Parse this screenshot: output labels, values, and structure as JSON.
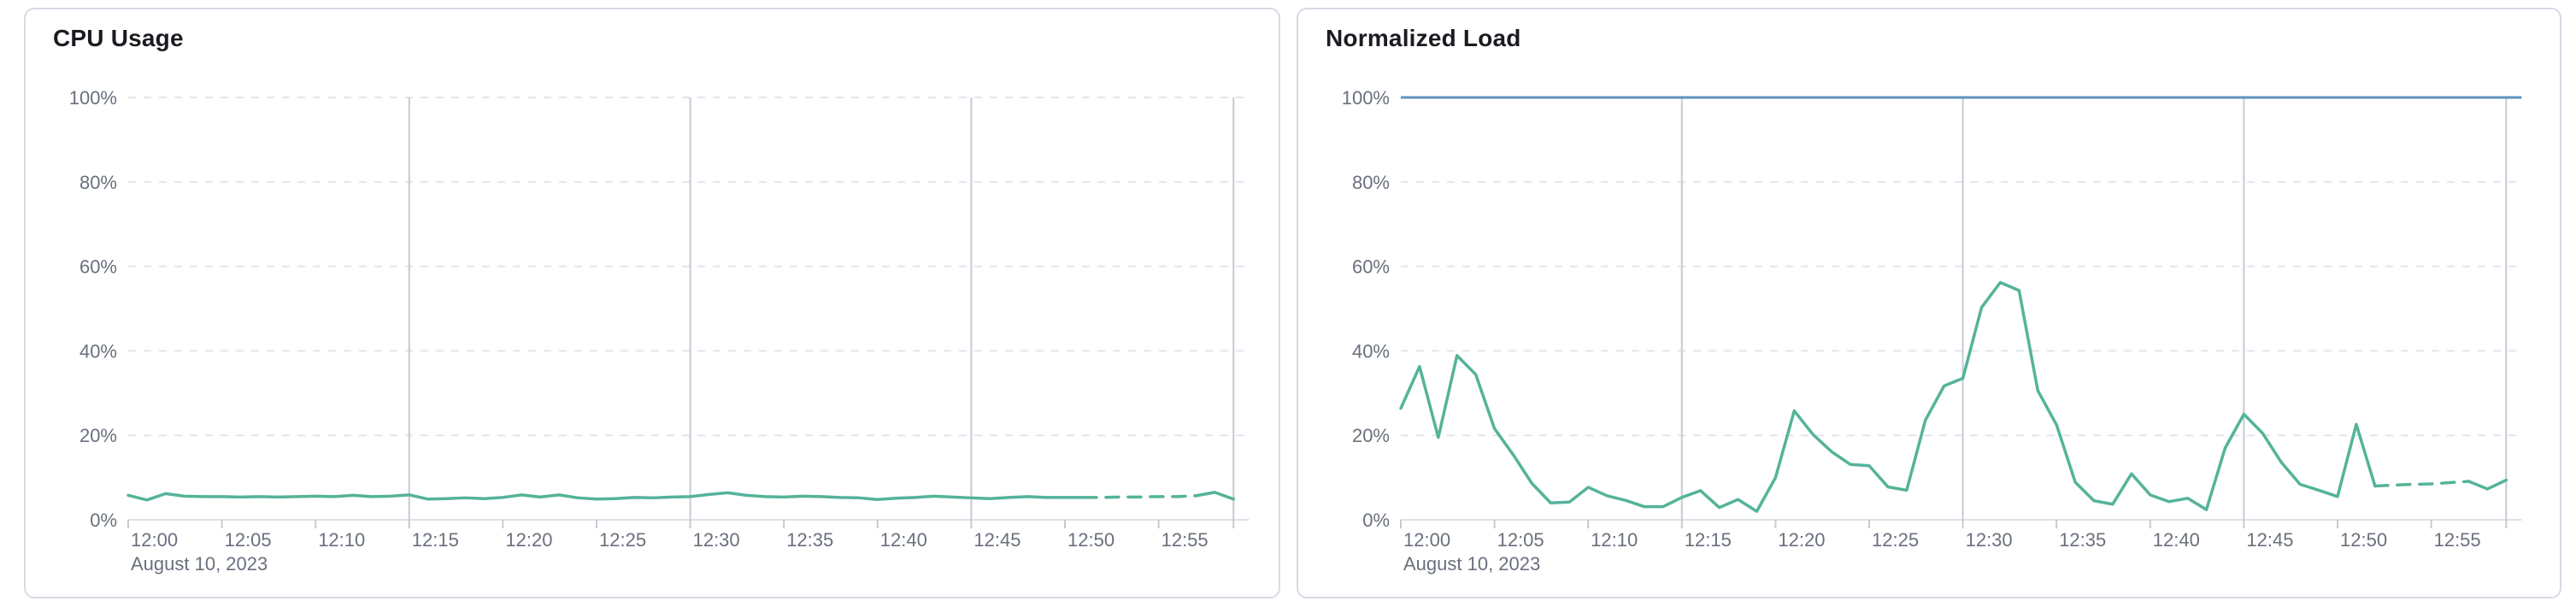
{
  "accent_colors": {
    "series_green": "#54b399",
    "reference_blue": "#6092c0",
    "axis_label_gray": "#69707d",
    "title_color": "#1a1c21",
    "major_gridline_gray": "#c6cad3",
    "minor_gridline_gray": "#e2e5ed",
    "axis_line_gray": "#dde0e8"
  },
  "panels": [
    {
      "title": "CPU Usage"
    },
    {
      "title": "Normalized Load"
    }
  ],
  "chart_data": [
    {
      "type": "line",
      "title": "CPU Usage",
      "xlabel": "",
      "ylabel": "",
      "date_label": "August 10, 2023",
      "x_tick_labels": [
        "12:00",
        "12:05",
        "12:10",
        "12:15",
        "12:20",
        "12:25",
        "12:30",
        "12:35",
        "12:40",
        "12:45",
        "12:50",
        "12:55"
      ],
      "y_tick_labels": [
        "0%",
        "20%",
        "40%",
        "60%",
        "80%",
        "100%"
      ],
      "ylim": [
        0,
        100
      ],
      "x_start_minute": 0,
      "x_minutes_per_point": 1,
      "legend": "none",
      "grid": "horizontal-dashed, vertical-major-solid",
      "series": [
        {
          "name": "cpu-usage",
          "color": "#54b399",
          "dashed_from_index": 51,
          "dashed_to_index": 57,
          "values": [
            5.8,
            4.7,
            6.2,
            5.6,
            5.5,
            5.5,
            5.4,
            5.5,
            5.4,
            5.5,
            5.6,
            5.5,
            5.8,
            5.5,
            5.6,
            5.9,
            4.9,
            5.0,
            5.2,
            5.0,
            5.3,
            5.9,
            5.4,
            5.9,
            5.2,
            4.9,
            5.0,
            5.3,
            5.2,
            5.4,
            5.5,
            6.0,
            6.4,
            5.8,
            5.5,
            5.4,
            5.6,
            5.5,
            5.3,
            5.2,
            4.8,
            5.1,
            5.3,
            5.6,
            5.4,
            5.2,
            5.0,
            5.3,
            5.5,
            5.3,
            5.3,
            5.3,
            5.3,
            5.4,
            5.4,
            5.5,
            5.5,
            5.7,
            6.5,
            4.9
          ]
        }
      ]
    },
    {
      "type": "line",
      "title": "Normalized Load",
      "xlabel": "",
      "ylabel": "",
      "date_label": "August 10, 2023",
      "x_tick_labels": [
        "12:00",
        "12:05",
        "12:10",
        "12:15",
        "12:20",
        "12:25",
        "12:30",
        "12:35",
        "12:40",
        "12:45",
        "12:50",
        "12:55"
      ],
      "y_tick_labels": [
        "0%",
        "20%",
        "40%",
        "60%",
        "80%",
        "100%"
      ],
      "ylim": [
        0,
        100
      ],
      "x_start_minute": 0,
      "x_minutes_per_point": 1,
      "legend": "none",
      "grid": "horizontal-dashed, vertical-major-solid",
      "reference_line": {
        "name": "limit-100-percent",
        "value": 100,
        "color": "#6092c0"
      },
      "series": [
        {
          "name": "normalized-load",
          "color": "#54b399",
          "dashed_from_index": 52,
          "dashed_to_index": 57,
          "values": [
            26.4,
            36.3,
            19.5,
            38.9,
            34.4,
            21.6,
            15.4,
            8.6,
            4.0,
            4.2,
            7.7,
            5.7,
            4.6,
            3.1,
            3.1,
            5.3,
            6.9,
            2.9,
            4.8,
            2.0,
            10.0,
            25.8,
            20.2,
            16.1,
            13.1,
            12.8,
            7.8,
            7.0,
            23.6,
            31.7,
            33.5,
            50.3,
            56.2,
            54.3,
            30.6,
            22.5,
            8.9,
            4.5,
            3.7,
            10.9,
            5.9,
            4.3,
            5.1,
            2.4,
            17.0,
            25.0,
            20.5,
            13.6,
            8.4,
            7.0,
            5.5,
            22.6,
            8.0,
            8.2,
            8.4,
            8.5,
            8.8,
            9.1,
            7.3,
            9.4
          ]
        }
      ]
    }
  ]
}
